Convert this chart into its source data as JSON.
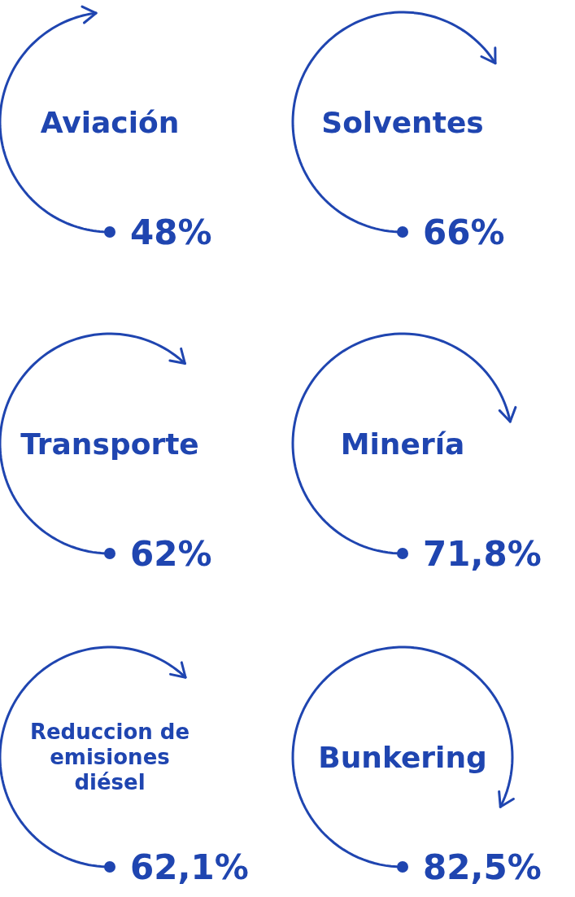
{
  "chart_data": {
    "type": "other",
    "categories": [
      "Aviación",
      "Solventes",
      "Transporte",
      "Minería",
      "Reduccion de emisiones diésel",
      "Bunkering"
    ],
    "values": [
      48,
      66,
      62,
      71.8,
      62.1,
      82.5
    ],
    "value_labels": [
      "48%",
      "66%",
      "62%",
      "71,8%",
      "62,1%",
      "82,5%"
    ],
    "color": "#1f45b0"
  }
}
